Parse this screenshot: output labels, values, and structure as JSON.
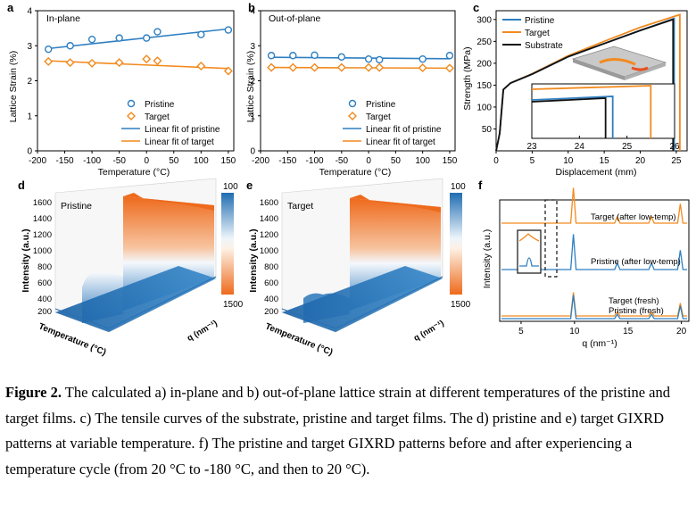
{
  "figure": {
    "colors": {
      "pristine": "#2e7fc1",
      "target": "#f28a1e",
      "substrate": "#111111"
    },
    "caption": {
      "label": "Figure 2.",
      "text": " The calculated a) in-plane and b) out-of-plane lattice strain at different temperatures of the pristine and target films. c) The tensile curves of the substrate, pristine and target films. The d) pristine and e) target GIXRD patterns at variable temperature. f) The pristine and target GIXRD patterns before and after experiencing a temperature cycle (from 20 °C to -180 °C, and then to 20 °C)."
    },
    "panels": {
      "a": {
        "letter": "a",
        "title": "In-plane",
        "ylabel": "Lattice Strain (%)",
        "xlabel": "Temperature (°C)",
        "legend": [
          "Pristine",
          "Target",
          "Linear fit of pristine",
          "Linear fit of target"
        ]
      },
      "b": {
        "letter": "b",
        "title": "Out-of-plane",
        "ylabel": "Lattice Strain (%)",
        "xlabel": "Temperature (°C)",
        "legend": [
          "Pristine",
          "Target",
          "Linear fit of pristine",
          "Linear fit of target"
        ]
      },
      "c": {
        "letter": "c",
        "ylabel": "Strength (MPa)",
        "xlabel": "Displacement (mm)",
        "legend": [
          "Pristine",
          "Target",
          "Substrate"
        ]
      },
      "d": {
        "letter": "d",
        "title": "Pristine",
        "ylabel": "Intensity (a.u.)",
        "xlabel": "Temperature (°C)",
        "qlabel": "q (nm⁻¹)",
        "colorbar": [
          "100",
          "1500"
        ]
      },
      "e": {
        "letter": "e",
        "title": "Target",
        "ylabel": "Intensity (a.u.)",
        "xlabel": "Temperature (°C)",
        "qlabel": "q (nm⁻¹)",
        "colorbar": [
          "100",
          "1500"
        ]
      },
      "f": {
        "letter": "f",
        "ylabel": "Intensity (a.u.)",
        "xlabel": "q (nm⁻¹)",
        "labels": [
          "Target (after low-temp)",
          "Pristine (after low-temp)",
          "Target (fresh)",
          "Pristine (fresh)"
        ]
      }
    }
  },
  "chart_data": [
    {
      "panel": "a",
      "type": "scatter",
      "x_ticks": [
        "-200",
        "-150",
        "-100",
        "-50",
        "0",
        "50",
        "100",
        "150"
      ],
      "y_ticks": [
        "0",
        "1",
        "2",
        "3",
        "4"
      ],
      "xlim": [
        -200,
        160
      ],
      "ylim": [
        0,
        4
      ],
      "series": [
        {
          "name": "Pristine",
          "x": [
            -180,
            -140,
            -100,
            -50,
            0,
            20,
            100,
            150
          ],
          "y": [
            2.9,
            3.0,
            3.18,
            3.22,
            3.22,
            3.4,
            3.32,
            3.45
          ]
        },
        {
          "name": "Target",
          "x": [
            -180,
            -140,
            -100,
            -50,
            0,
            20,
            100,
            150
          ],
          "y": [
            2.55,
            2.52,
            2.5,
            2.52,
            2.62,
            2.57,
            2.42,
            2.28
          ]
        },
        {
          "name": "Linear fit of pristine",
          "x": [
            -180,
            150
          ],
          "y": [
            2.92,
            3.48
          ]
        },
        {
          "name": "Linear fit of target",
          "x": [
            -180,
            150
          ],
          "y": [
            2.57,
            2.35
          ]
        }
      ]
    },
    {
      "panel": "b",
      "type": "scatter",
      "x_ticks": [
        "-200",
        "-150",
        "-100",
        "-50",
        "0",
        "50",
        "100",
        "150"
      ],
      "y_ticks": [
        "0",
        "1",
        "2",
        "3",
        "4"
      ],
      "xlim": [
        -200,
        160
      ],
      "ylim": [
        0,
        4
      ],
      "series": [
        {
          "name": "Pristine",
          "x": [
            -180,
            -140,
            -100,
            -50,
            0,
            20,
            100,
            150
          ],
          "y": [
            2.72,
            2.72,
            2.73,
            2.68,
            2.62,
            2.6,
            2.62,
            2.72
          ]
        },
        {
          "name": "Target",
          "x": [
            -180,
            -140,
            -100,
            -50,
            0,
            20,
            100,
            150
          ],
          "y": [
            2.38,
            2.38,
            2.38,
            2.38,
            2.38,
            2.38,
            2.37,
            2.36
          ]
        },
        {
          "name": "Linear fit of pristine",
          "x": [
            -180,
            150
          ],
          "y": [
            2.67,
            2.63
          ]
        },
        {
          "name": "Linear fit of target",
          "x": [
            -180,
            150
          ],
          "y": [
            2.38,
            2.36
          ]
        }
      ]
    },
    {
      "panel": "c",
      "type": "line",
      "x_ticks": [
        "0",
        "5",
        "10",
        "15",
        "20",
        "25"
      ],
      "y_ticks": [
        "50",
        "100",
        "150",
        "200",
        "250",
        "300"
      ],
      "xlim": [
        0,
        26.5
      ],
      "ylim": [
        0,
        320
      ],
      "inset": {
        "x_ticks": [
          "23",
          "24",
          "25",
          "26"
        ],
        "xlim": [
          23,
          26
        ]
      },
      "series": [
        {
          "name": "Substrate",
          "x": [
            0,
            0.5,
            1,
            2,
            5,
            10,
            15,
            20,
            24.55,
            24.55
          ],
          "y": [
            0,
            40,
            140,
            155,
            175,
            215,
            245,
            275,
            300,
            0
          ]
        },
        {
          "name": "Pristine",
          "x": [
            0,
            0.5,
            1,
            2,
            5,
            10,
            15,
            20,
            24.7,
            24.7
          ],
          "y": [
            0,
            40,
            140,
            155,
            175,
            215,
            245,
            275,
            302,
            0
          ]
        },
        {
          "name": "Target",
          "x": [
            0,
            0.5,
            1,
            2,
            5,
            10,
            15,
            20,
            25.5,
            25.5
          ],
          "y": [
            0,
            40,
            140,
            155,
            176,
            217,
            250,
            282,
            311,
            0
          ]
        }
      ]
    },
    {
      "panel": "f",
      "type": "line",
      "x_ticks": [
        "5",
        "10",
        "15",
        "20"
      ],
      "xlim": [
        3,
        20.7
      ],
      "peaks_q": [
        9.9,
        14.0,
        17.2,
        19.9
      ]
    }
  ]
}
